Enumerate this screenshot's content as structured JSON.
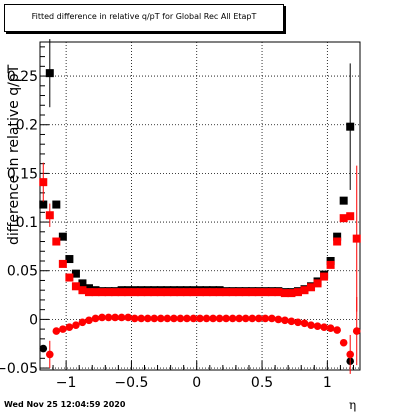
{
  "page": {
    "footer_date": "Wed Nov 25 12:04:59 2020"
  },
  "chart_data": {
    "type": "scatter",
    "title": "Fitted difference in relative q/pT for Global Rec All EtapT",
    "xlabel": "η",
    "ylabel": "difference in relative q/pT",
    "xlim": [
      -1.2,
      1.25
    ],
    "ylim": [
      -0.052,
      0.285
    ],
    "xticks": [
      -1,
      -0.5,
      0,
      0.5,
      1
    ],
    "xtick_labels": [
      "−1",
      "−0.5",
      "0",
      "0.5",
      "1"
    ],
    "yticks": [
      -0.05,
      0,
      0.05,
      0.1,
      0.15,
      0.2,
      0.25
    ],
    "ytick_labels": [
      "−0.05",
      "0",
      "0.05",
      "0.1",
      "0.15",
      "0.2",
      "0.25"
    ],
    "grid": true,
    "series": [
      {
        "marker": "square",
        "color": "#000000",
        "points": [
          {
            "x": -1.175,
            "y": 0.118,
            "err": 0.0
          },
          {
            "x": -1.125,
            "y": 0.253,
            "err": 0.035
          },
          {
            "x": -1.075,
            "y": 0.118,
            "err": 0.0
          },
          {
            "x": -1.025,
            "y": 0.085,
            "err": 0.0
          },
          {
            "x": -0.975,
            "y": 0.062,
            "err": 0.0
          },
          {
            "x": -0.925,
            "y": 0.047,
            "err": 0.0
          },
          {
            "x": -0.875,
            "y": 0.037,
            "err": 0.0
          },
          {
            "x": -0.825,
            "y": 0.032,
            "err": 0.0
          },
          {
            "x": -0.775,
            "y": 0.03,
            "err": 0.0
          },
          {
            "x": -0.725,
            "y": 0.029,
            "err": 0.0
          },
          {
            "x": -0.675,
            "y": 0.029,
            "err": 0.0
          },
          {
            "x": -0.625,
            "y": 0.029,
            "err": 0.0
          },
          {
            "x": -0.575,
            "y": 0.03,
            "err": 0.0
          },
          {
            "x": -0.525,
            "y": 0.03,
            "err": 0.0
          },
          {
            "x": -0.475,
            "y": 0.03,
            "err": 0.0
          },
          {
            "x": -0.425,
            "y": 0.03,
            "err": 0.0
          },
          {
            "x": -0.375,
            "y": 0.03,
            "err": 0.0
          },
          {
            "x": -0.325,
            "y": 0.03,
            "err": 0.0
          },
          {
            "x": -0.275,
            "y": 0.03,
            "err": 0.0
          },
          {
            "x": -0.225,
            "y": 0.03,
            "err": 0.0
          },
          {
            "x": -0.175,
            "y": 0.03,
            "err": 0.0
          },
          {
            "x": -0.125,
            "y": 0.03,
            "err": 0.0
          },
          {
            "x": -0.075,
            "y": 0.03,
            "err": 0.0
          },
          {
            "x": -0.025,
            "y": 0.03,
            "err": 0.0
          },
          {
            "x": 0.025,
            "y": 0.03,
            "err": 0.0
          },
          {
            "x": 0.075,
            "y": 0.03,
            "err": 0.0
          },
          {
            "x": 0.125,
            "y": 0.03,
            "err": 0.0
          },
          {
            "x": 0.175,
            "y": 0.03,
            "err": 0.0
          },
          {
            "x": 0.225,
            "y": 0.029,
            "err": 0.0
          },
          {
            "x": 0.275,
            "y": 0.029,
            "err": 0.0
          },
          {
            "x": 0.325,
            "y": 0.029,
            "err": 0.0
          },
          {
            "x": 0.375,
            "y": 0.029,
            "err": 0.0
          },
          {
            "x": 0.425,
            "y": 0.029,
            "err": 0.0
          },
          {
            "x": 0.475,
            "y": 0.029,
            "err": 0.0
          },
          {
            "x": 0.525,
            "y": 0.029,
            "err": 0.0
          },
          {
            "x": 0.575,
            "y": 0.029,
            "err": 0.0
          },
          {
            "x": 0.625,
            "y": 0.029,
            "err": 0.0
          },
          {
            "x": 0.675,
            "y": 0.028,
            "err": 0.0
          },
          {
            "x": 0.725,
            "y": 0.028,
            "err": 0.0
          },
          {
            "x": 0.775,
            "y": 0.029,
            "err": 0.0
          },
          {
            "x": 0.825,
            "y": 0.031,
            "err": 0.0
          },
          {
            "x": 0.875,
            "y": 0.034,
            "err": 0.0
          },
          {
            "x": 0.925,
            "y": 0.039,
            "err": 0.0
          },
          {
            "x": 0.975,
            "y": 0.046,
            "err": 0.0
          },
          {
            "x": 1.025,
            "y": 0.06,
            "err": 0.0
          },
          {
            "x": 1.075,
            "y": 0.085,
            "err": 0.0
          },
          {
            "x": 1.125,
            "y": 0.122,
            "err": 0.0
          },
          {
            "x": 1.175,
            "y": 0.198,
            "err": 0.065
          }
        ]
      },
      {
        "marker": "square",
        "color": "#ff0000",
        "points": [
          {
            "x": -1.175,
            "y": 0.141,
            "err": 0.02
          },
          {
            "x": -1.125,
            "y": 0.107,
            "err": 0.012
          },
          {
            "x": -1.075,
            "y": 0.08,
            "err": 0.0
          },
          {
            "x": -1.025,
            "y": 0.057,
            "err": 0.0
          },
          {
            "x": -0.975,
            "y": 0.043,
            "err": 0.0
          },
          {
            "x": -0.925,
            "y": 0.034,
            "err": 0.0
          },
          {
            "x": -0.875,
            "y": 0.03,
            "err": 0.0
          },
          {
            "x": -0.825,
            "y": 0.028,
            "err": 0.0
          },
          {
            "x": -0.775,
            "y": 0.028,
            "err": 0.0
          },
          {
            "x": -0.725,
            "y": 0.028,
            "err": 0.0
          },
          {
            "x": -0.675,
            "y": 0.028,
            "err": 0.0
          },
          {
            "x": -0.625,
            "y": 0.028,
            "err": 0.0
          },
          {
            "x": -0.575,
            "y": 0.028,
            "err": 0.0
          },
          {
            "x": -0.525,
            "y": 0.028,
            "err": 0.0
          },
          {
            "x": -0.475,
            "y": 0.028,
            "err": 0.0
          },
          {
            "x": -0.425,
            "y": 0.028,
            "err": 0.0
          },
          {
            "x": -0.375,
            "y": 0.028,
            "err": 0.0
          },
          {
            "x": -0.325,
            "y": 0.028,
            "err": 0.0
          },
          {
            "x": -0.275,
            "y": 0.028,
            "err": 0.0
          },
          {
            "x": -0.225,
            "y": 0.028,
            "err": 0.0
          },
          {
            "x": -0.175,
            "y": 0.028,
            "err": 0.0
          },
          {
            "x": -0.125,
            "y": 0.028,
            "err": 0.0
          },
          {
            "x": -0.075,
            "y": 0.028,
            "err": 0.0
          },
          {
            "x": -0.025,
            "y": 0.028,
            "err": 0.0
          },
          {
            "x": 0.025,
            "y": 0.028,
            "err": 0.0
          },
          {
            "x": 0.075,
            "y": 0.028,
            "err": 0.0
          },
          {
            "x": 0.125,
            "y": 0.028,
            "err": 0.0
          },
          {
            "x": 0.175,
            "y": 0.028,
            "err": 0.0
          },
          {
            "x": 0.225,
            "y": 0.028,
            "err": 0.0
          },
          {
            "x": 0.275,
            "y": 0.028,
            "err": 0.0
          },
          {
            "x": 0.325,
            "y": 0.028,
            "err": 0.0
          },
          {
            "x": 0.375,
            "y": 0.028,
            "err": 0.0
          },
          {
            "x": 0.425,
            "y": 0.028,
            "err": 0.0
          },
          {
            "x": 0.475,
            "y": 0.028,
            "err": 0.0
          },
          {
            "x": 0.525,
            "y": 0.028,
            "err": 0.0
          },
          {
            "x": 0.575,
            "y": 0.028,
            "err": 0.0
          },
          {
            "x": 0.625,
            "y": 0.028,
            "err": 0.0
          },
          {
            "x": 0.675,
            "y": 0.027,
            "err": 0.0
          },
          {
            "x": 0.725,
            "y": 0.027,
            "err": 0.0
          },
          {
            "x": 0.775,
            "y": 0.028,
            "err": 0.0
          },
          {
            "x": 0.825,
            "y": 0.03,
            "err": 0.0
          },
          {
            "x": 0.875,
            "y": 0.033,
            "err": 0.0
          },
          {
            "x": 0.925,
            "y": 0.037,
            "err": 0.0
          },
          {
            "x": 0.975,
            "y": 0.044,
            "err": 0.0
          },
          {
            "x": 1.025,
            "y": 0.056,
            "err": 0.0
          },
          {
            "x": 1.075,
            "y": 0.08,
            "err": 0.0
          },
          {
            "x": 1.125,
            "y": 0.104,
            "err": 0.0
          },
          {
            "x": 1.175,
            "y": 0.106,
            "err": 0.0
          },
          {
            "x": 1.225,
            "y": 0.083,
            "err": 0.075
          }
        ]
      },
      {
        "marker": "circle",
        "color": "#000000",
        "points": [
          {
            "x": -1.175,
            "y": -0.03,
            "err": 0.0
          },
          {
            "x": 1.175,
            "y": -0.043,
            "err": 0.0
          }
        ]
      },
      {
        "marker": "circle",
        "color": "#ff0000",
        "points": [
          {
            "x": -1.125,
            "y": -0.036,
            "err": 0.014
          },
          {
            "x": -1.075,
            "y": -0.012,
            "err": 0.0
          },
          {
            "x": -1.025,
            "y": -0.01,
            "err": 0.0
          },
          {
            "x": -0.975,
            "y": -0.008,
            "err": 0.0
          },
          {
            "x": -0.925,
            "y": -0.006,
            "err": 0.0
          },
          {
            "x": -0.875,
            "y": -0.003,
            "err": 0.0
          },
          {
            "x": -0.825,
            "y": -0.001,
            "err": 0.0
          },
          {
            "x": -0.775,
            "y": 0.001,
            "err": 0.0
          },
          {
            "x": -0.725,
            "y": 0.002,
            "err": 0.0
          },
          {
            "x": -0.675,
            "y": 0.002,
            "err": 0.0
          },
          {
            "x": -0.625,
            "y": 0.002,
            "err": 0.0
          },
          {
            "x": -0.575,
            "y": 0.002,
            "err": 0.0
          },
          {
            "x": -0.525,
            "y": 0.002,
            "err": 0.0
          },
          {
            "x": -0.475,
            "y": 0.001,
            "err": 0.0
          },
          {
            "x": -0.425,
            "y": 0.001,
            "err": 0.0
          },
          {
            "x": -0.375,
            "y": 0.001,
            "err": 0.0
          },
          {
            "x": -0.325,
            "y": 0.001,
            "err": 0.0
          },
          {
            "x": -0.275,
            "y": 0.001,
            "err": 0.0
          },
          {
            "x": -0.225,
            "y": 0.001,
            "err": 0.0
          },
          {
            "x": -0.175,
            "y": 0.001,
            "err": 0.0
          },
          {
            "x": -0.125,
            "y": 0.001,
            "err": 0.0
          },
          {
            "x": -0.075,
            "y": 0.001,
            "err": 0.0
          },
          {
            "x": -0.025,
            "y": 0.001,
            "err": 0.0
          },
          {
            "x": 0.025,
            "y": 0.001,
            "err": 0.0
          },
          {
            "x": 0.075,
            "y": 0.001,
            "err": 0.0
          },
          {
            "x": 0.125,
            "y": 0.001,
            "err": 0.0
          },
          {
            "x": 0.175,
            "y": 0.001,
            "err": 0.0
          },
          {
            "x": 0.225,
            "y": 0.001,
            "err": 0.0
          },
          {
            "x": 0.275,
            "y": 0.001,
            "err": 0.0
          },
          {
            "x": 0.325,
            "y": 0.001,
            "err": 0.0
          },
          {
            "x": 0.375,
            "y": 0.001,
            "err": 0.0
          },
          {
            "x": 0.425,
            "y": 0.001,
            "err": 0.0
          },
          {
            "x": 0.475,
            "y": 0.001,
            "err": 0.0
          },
          {
            "x": 0.525,
            "y": 0.001,
            "err": 0.0
          },
          {
            "x": 0.575,
            "y": 0.001,
            "err": 0.0
          },
          {
            "x": 0.625,
            "y": 0.0,
            "err": 0.0
          },
          {
            "x": 0.675,
            "y": -0.001,
            "err": 0.0
          },
          {
            "x": 0.725,
            "y": -0.002,
            "err": 0.0
          },
          {
            "x": 0.775,
            "y": -0.003,
            "err": 0.0
          },
          {
            "x": 0.825,
            "y": -0.004,
            "err": 0.0
          },
          {
            "x": 0.875,
            "y": -0.006,
            "err": 0.0
          },
          {
            "x": 0.925,
            "y": -0.007,
            "err": 0.0
          },
          {
            "x": 0.975,
            "y": -0.008,
            "err": 0.0
          },
          {
            "x": 1.025,
            "y": -0.009,
            "err": 0.0
          },
          {
            "x": 1.075,
            "y": -0.011,
            "err": 0.0
          },
          {
            "x": 1.125,
            "y": -0.024,
            "err": 0.0
          },
          {
            "x": 1.175,
            "y": -0.036,
            "err": 0.02
          },
          {
            "x": 1.225,
            "y": -0.012,
            "err": 0.035
          }
        ]
      }
    ]
  }
}
